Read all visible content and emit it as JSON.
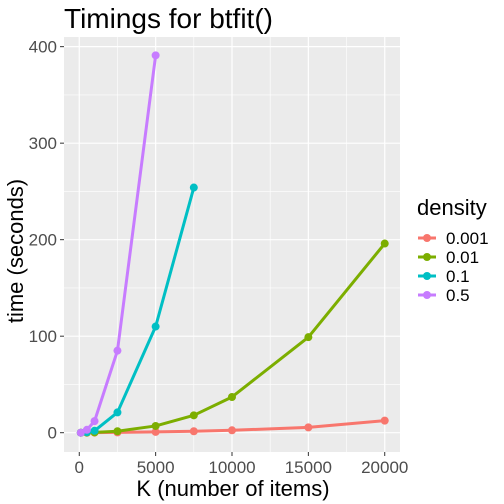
{
  "chart_data": {
    "type": "line",
    "title": "Timings for btfit()",
    "xlabel": "K (number of items)",
    "ylabel": "time (seconds)",
    "xlim": [
      -1000,
      21000
    ],
    "ylim": [
      -20,
      410
    ],
    "x_ticks": [
      0,
      5000,
      10000,
      15000,
      20000
    ],
    "y_ticks": [
      0,
      100,
      200,
      300,
      400
    ],
    "x_tick_labels": [
      "0",
      "5000",
      "10000",
      "15000",
      "20000"
    ],
    "y_tick_labels": [
      "0",
      "100",
      "200",
      "300",
      "400"
    ],
    "grid": true,
    "legend": {
      "title": "density",
      "position": "right"
    },
    "series": [
      {
        "name": "0.001",
        "color": "#F8766D",
        "x": [
          100,
          500,
          1000,
          2500,
          5000,
          7500,
          10000,
          15000,
          20000
        ],
        "y": [
          0,
          0,
          0.1,
          0.3,
          0.8,
          1.5,
          2.5,
          5.5,
          12.5
        ]
      },
      {
        "name": "0.01",
        "color": "#7CAE00",
        "x": [
          100,
          500,
          1000,
          2500,
          5000,
          7500,
          10000,
          15000,
          20000
        ],
        "y": [
          0,
          0.1,
          0.3,
          1.5,
          7,
          18,
          37,
          99,
          196
        ]
      },
      {
        "name": "0.1",
        "color": "#00BFC4",
        "x": [
          100,
          500,
          1000,
          2500,
          5000,
          7500
        ],
        "y": [
          0,
          0.5,
          2,
          21,
          110,
          254
        ]
      },
      {
        "name": "0.5",
        "color": "#C77CFF",
        "x": [
          100,
          500,
          1000,
          2500,
          5000
        ],
        "y": [
          0,
          3,
          12,
          85,
          391
        ]
      }
    ]
  }
}
